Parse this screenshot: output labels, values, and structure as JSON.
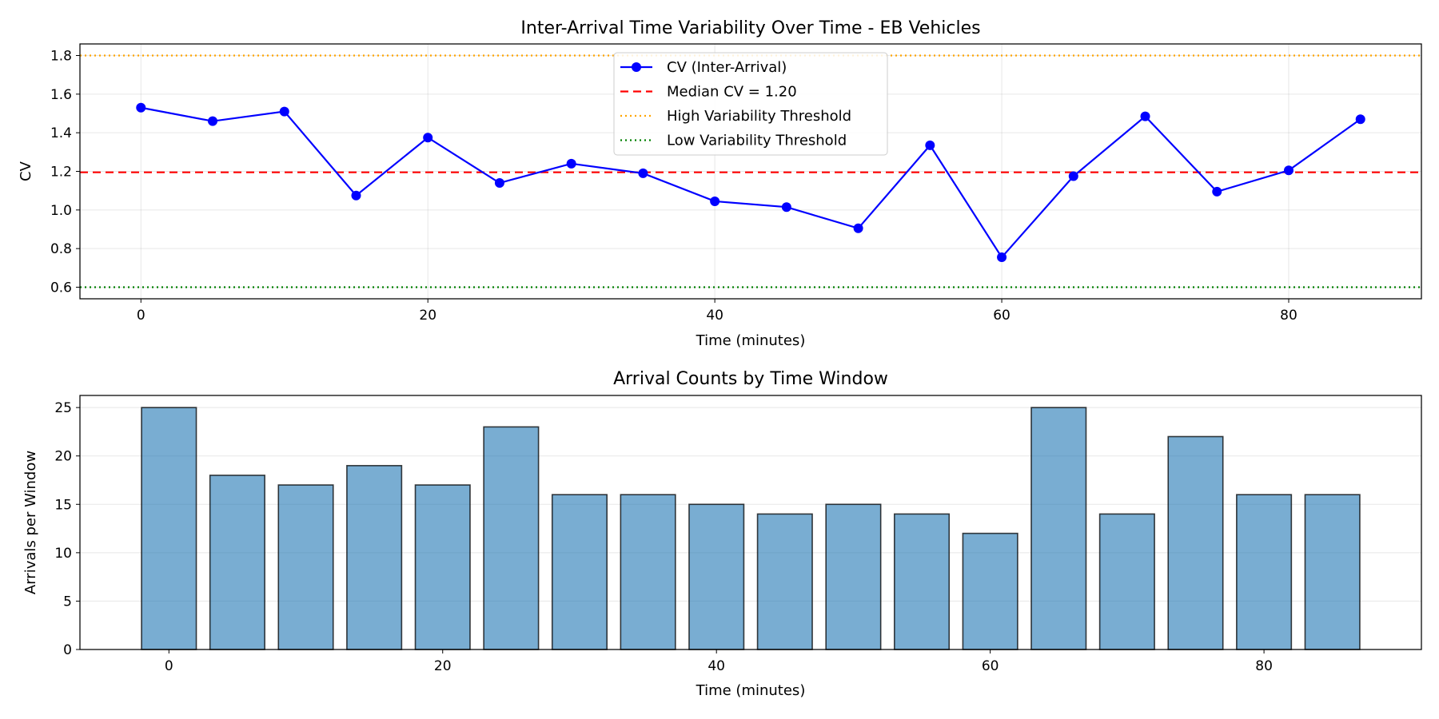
{
  "chart_data": [
    {
      "type": "line",
      "title": "Inter-Arrival Time Variability Over Time - EB Vehicles",
      "xlabel": "Time (minutes)",
      "ylabel": "CV",
      "xlim": [
        -4.25,
        89.25
      ],
      "ylim": [
        0.54,
        1.86
      ],
      "xticks": [
        0,
        20,
        40,
        60,
        80
      ],
      "yticks": [
        0.6,
        0.8,
        1.0,
        1.2,
        1.4,
        1.6,
        1.8
      ],
      "ytick_labels": [
        "0.6",
        "0.8",
        "1.0",
        "1.2",
        "1.4",
        "1.6",
        "1.8"
      ],
      "grid": true,
      "legend_position": "top-center",
      "series": [
        {
          "name": "CV (Inter-Arrival)",
          "color": "#0000ff",
          "style": "solid-line-circle-markers",
          "x": [
            0,
            5,
            10,
            15,
            20,
            25,
            30,
            35,
            40,
            45,
            50,
            55,
            60,
            65,
            70,
            75,
            80,
            85
          ],
          "y": [
            1.53,
            1.46,
            1.51,
            1.075,
            1.375,
            1.14,
            1.24,
            1.19,
            1.045,
            1.015,
            0.905,
            1.335,
            0.755,
            1.175,
            1.485,
            1.095,
            1.205,
            1.47
          ]
        }
      ],
      "reference_lines": [
        {
          "name": "Median CV = 1.20",
          "y": 1.195,
          "color": "#ff0000",
          "style": "dashed"
        },
        {
          "name": "High Variability Threshold",
          "y": 1.8,
          "color": "#ffa500",
          "style": "dotted"
        },
        {
          "name": "Low Variability Threshold",
          "y": 0.6,
          "color": "#008000",
          "style": "dotted"
        }
      ]
    },
    {
      "type": "bar",
      "title": "Arrival Counts by Time Window",
      "xlabel": "Time (minutes)",
      "ylabel": "Arrivals per Window",
      "xlim": [
        -6.5,
        91.5
      ],
      "ylim": [
        0,
        26.25
      ],
      "xticks": [
        0,
        20,
        40,
        60,
        80
      ],
      "yticks": [
        0,
        5,
        10,
        15,
        20,
        25
      ],
      "grid": true,
      "bar_color": "#1f77b4",
      "bar_opacity": 0.6,
      "edge_color": "#000000",
      "bar_width": 4,
      "x": [
        0,
        5,
        10,
        15,
        20,
        25,
        30,
        35,
        40,
        45,
        50,
        55,
        60,
        65,
        70,
        75,
        80,
        85
      ],
      "values": [
        25,
        18,
        17,
        19,
        17,
        23,
        16,
        16,
        15,
        14,
        15,
        14,
        12,
        25,
        14,
        22,
        16,
        16
      ]
    }
  ]
}
